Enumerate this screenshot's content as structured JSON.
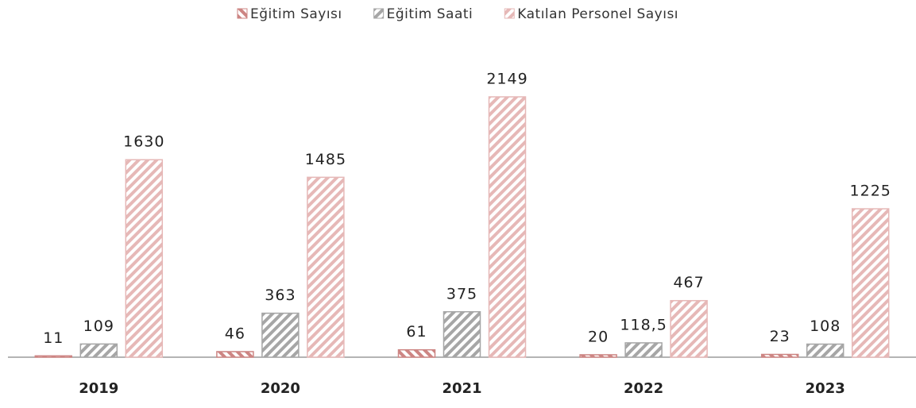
{
  "chart_data": {
    "type": "bar",
    "categories": [
      "2019",
      "2020",
      "2021",
      "2022",
      "2023"
    ],
    "series": [
      {
        "name": "Eğitim Sayısı",
        "color": "#cd8583",
        "values": [
          11,
          46,
          61,
          20,
          23
        ]
      },
      {
        "name": "Eğitim Saati",
        "color": "#a6a6a6",
        "values": [
          109,
          363,
          375,
          118.5,
          108
        ],
        "value_labels": [
          "109",
          "363",
          "375",
          "118,5",
          "108"
        ]
      },
      {
        "name": "Katılan Personel Sayısı",
        "color": "#e6b8b7",
        "values": [
          1630,
          1485,
          2149,
          467,
          1225
        ]
      }
    ],
    "legend": "top"
  }
}
